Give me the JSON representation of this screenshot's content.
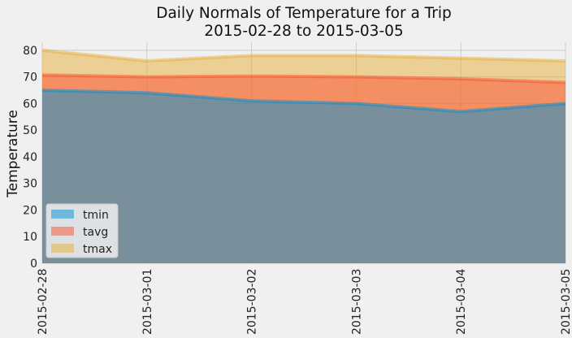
{
  "chart_data": {
    "type": "area",
    "title": "Daily Normals of Temperature for a Trip\n2015-02-28 to 2015-03-05",
    "xlabel": "",
    "ylabel": "Temperature",
    "categories": [
      "2015-02-28",
      "2015-03-01",
      "2015-03-02",
      "2015-03-03",
      "2015-03-04",
      "2015-03-05"
    ],
    "series": [
      {
        "name": "tmin",
        "values": [
          65,
          64,
          61,
          60,
          57,
          60
        ],
        "color": "#008fd5"
      },
      {
        "name": "tavg",
        "values": [
          70.7,
          70.0,
          70.3,
          70.0,
          69.3,
          67.9
        ],
        "color": "#fc4f30"
      },
      {
        "name": "tmax",
        "values": [
          80,
          76,
          78,
          78,
          77,
          76
        ],
        "color": "#e5ae38"
      }
    ],
    "yticks": [
      0,
      10,
      20,
      30,
      40,
      50,
      60,
      70,
      80
    ],
    "ylim": [
      0,
      83
    ],
    "stacked": false,
    "grid": true,
    "legend_position": "lower-left",
    "style": "fivethirtyeight"
  }
}
